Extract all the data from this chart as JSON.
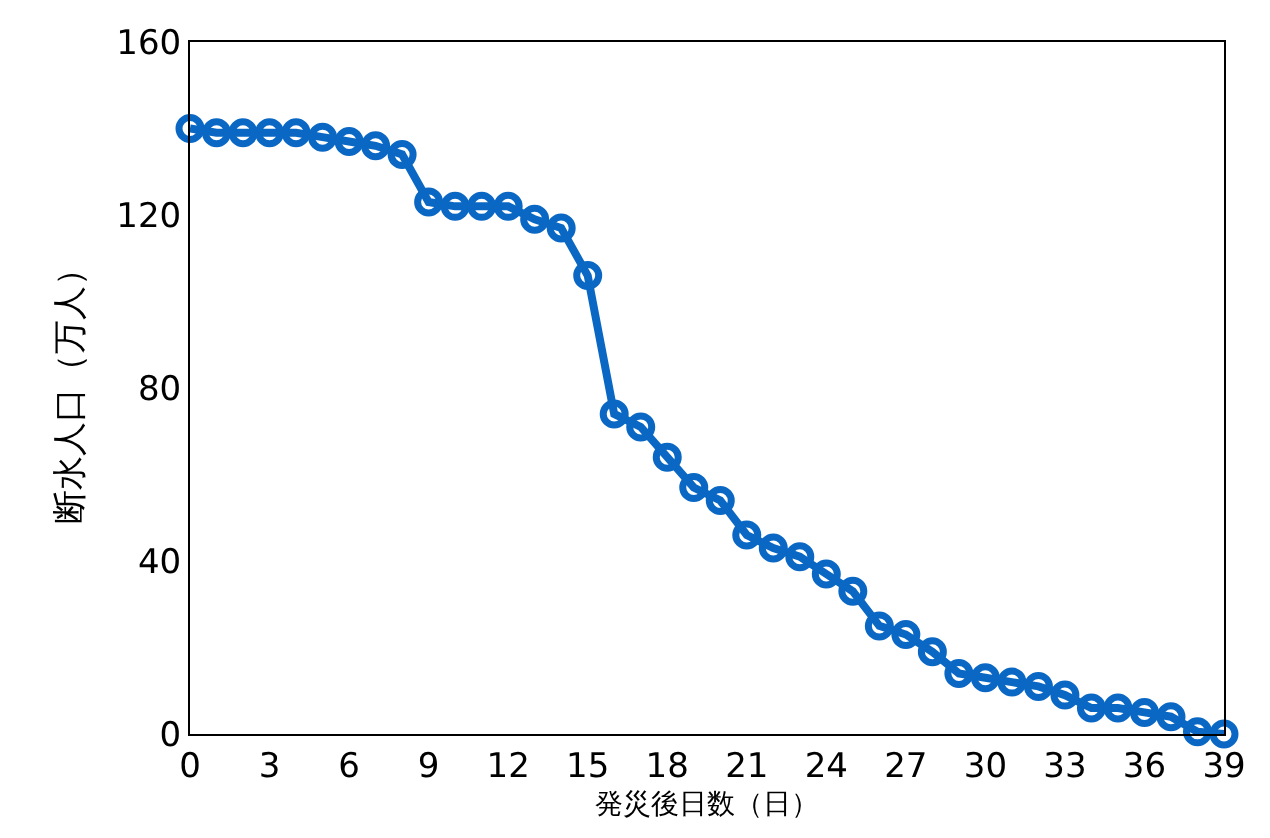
{
  "chart_data": {
    "type": "line",
    "xlabel": "発災後日数（日）",
    "ylabel": "断水人口（万人）",
    "x": [
      0,
      1,
      2,
      3,
      4,
      5,
      6,
      7,
      8,
      9,
      10,
      11,
      12,
      13,
      14,
      15,
      16,
      17,
      18,
      19,
      20,
      21,
      22,
      23,
      24,
      25,
      26,
      27,
      28,
      29,
      30,
      31,
      32,
      33,
      34,
      35,
      36,
      37,
      38,
      39
    ],
    "series": [
      {
        "color": "#0a68c4",
        "values": [
          140,
          139,
          139,
          139,
          139,
          138,
          137,
          136,
          134,
          123,
          122,
          122,
          122,
          119,
          117,
          106,
          74,
          71,
          64,
          57,
          54,
          46,
          43,
          41,
          37,
          33,
          25,
          23,
          19,
          14,
          13,
          12,
          11,
          9,
          6,
          6,
          5,
          4,
          0.5,
          0
        ]
      }
    ],
    "xlim": [
      0,
      39
    ],
    "xticks": [
      0,
      3,
      6,
      9,
      12,
      15,
      18,
      21,
      24,
      27,
      30,
      33,
      36,
      39
    ],
    "ylim": [
      0,
      160
    ],
    "yticks": [
      0,
      40,
      80,
      120,
      160
    ],
    "legend": false,
    "marker": "circle",
    "line_style": "solid"
  }
}
